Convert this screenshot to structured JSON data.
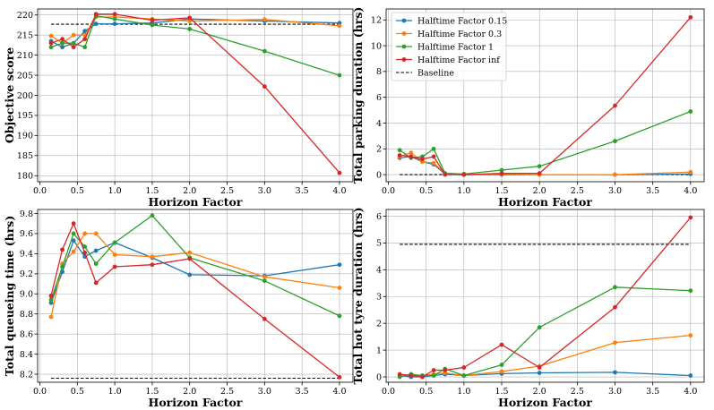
{
  "legend": {
    "entries": [
      "Halftime Factor 0.15",
      "Halftime Factor 0.3",
      "Halftime Factor 1",
      "Halftime Factor inf",
      "Baseline"
    ],
    "location": "top-left of top-right panel"
  },
  "colors": {
    "Halftime Factor 0.15": "#1f77b4",
    "Halftime Factor 0.3": "#ff7f0e",
    "Halftime Factor 1": "#2ca02c",
    "Halftime Factor inf": "#d62728",
    "Baseline": "#000000"
  },
  "chart_data": [
    {
      "type": "line",
      "panel": "top-left",
      "title": "",
      "xlabel": "Horizon Factor",
      "ylabel": "Objective score",
      "x": [
        0.15,
        0.3,
        0.45,
        0.6,
        0.75,
        1.0,
        1.5,
        2.0,
        3.0,
        4.0
      ],
      "xlim": [
        -0.03,
        4.18
      ],
      "ylim": [
        178.5,
        221.5
      ],
      "xticks": [
        0.0,
        0.5,
        1.0,
        1.5,
        2.0,
        2.5,
        3.0,
        3.5,
        4.0
      ],
      "xtick_labels": [
        "0.0",
        "0.5",
        "1.0",
        "1.5",
        "2.0",
        "2.5",
        "3.0",
        "3.5",
        "4.0"
      ],
      "yticks": [
        180,
        185,
        190,
        195,
        200,
        205,
        210,
        215,
        220
      ],
      "ytick_labels": [
        "180",
        "185",
        "190",
        "195",
        "200",
        "205",
        "210",
        "215",
        "220"
      ],
      "grid": true,
      "series": [
        {
          "name": "Halftime Factor 0.15",
          "values": [
            213.5,
            212.0,
            213.0,
            216.0,
            217.8,
            217.8,
            218.0,
            219.0,
            218.5,
            218.0
          ]
        },
        {
          "name": "Halftime Factor 0.3",
          "values": [
            214.8,
            213.0,
            215.0,
            215.0,
            219.5,
            219.5,
            219.0,
            218.5,
            218.9,
            217.3
          ]
        },
        {
          "name": "Halftime Factor 1",
          "values": [
            212.0,
            213.0,
            213.0,
            212.0,
            219.8,
            219.0,
            217.5,
            216.5,
            211.0,
            205.0
          ]
        },
        {
          "name": "Halftime Factor inf",
          "values": [
            213.0,
            214.0,
            212.0,
            214.0,
            220.2,
            220.2,
            218.7,
            219.3,
            202.2,
            180.7
          ]
        }
      ],
      "baseline": 217.7
    },
    {
      "type": "line",
      "panel": "top-right",
      "title": "",
      "xlabel": "Horizon Factor",
      "ylabel": "Total parking duration (hrs)",
      "x": [
        0.15,
        0.3,
        0.45,
        0.6,
        0.75,
        1.0,
        1.5,
        2.0,
        3.0,
        4.0
      ],
      "xlim": [
        -0.03,
        4.18
      ],
      "ylim": [
        -0.55,
        12.85
      ],
      "xticks": [
        0.0,
        0.5,
        1.0,
        1.5,
        2.0,
        2.5,
        3.0,
        3.5,
        4.0
      ],
      "xtick_labels": [
        "0.0",
        "0.5",
        "1.0",
        "1.5",
        "2.0",
        "2.5",
        "3.0",
        "3.5",
        "4.0"
      ],
      "yticks": [
        0,
        2,
        4,
        6,
        8,
        10,
        12
      ],
      "ytick_labels": [
        "0",
        "2",
        "4",
        "6",
        "8",
        "10",
        "12"
      ],
      "grid": true,
      "series": [
        {
          "name": "Halftime Factor 0.15",
          "values": [
            1.3,
            1.4,
            1.0,
            0.8,
            0.05,
            0.0,
            0.0,
            0.0,
            0.0,
            0.05
          ]
        },
        {
          "name": "Halftime Factor 0.3",
          "values": [
            1.4,
            1.7,
            1.0,
            0.9,
            0.1,
            0.0,
            0.05,
            0.0,
            0.0,
            0.2
          ]
        },
        {
          "name": "Halftime Factor 1",
          "values": [
            1.9,
            1.3,
            1.4,
            2.0,
            0.1,
            0.05,
            0.35,
            0.65,
            2.6,
            4.9
          ]
        },
        {
          "name": "Halftime Factor inf",
          "values": [
            1.5,
            1.4,
            1.2,
            1.4,
            0.0,
            0.0,
            0.1,
            0.1,
            5.35,
            12.2
          ]
        }
      ],
      "baseline": 0.0
    },
    {
      "type": "line",
      "panel": "bottom-left",
      "title": "",
      "xlabel": "Horizon Factor",
      "ylabel": "Total queueing time (hrs)",
      "x": [
        0.15,
        0.3,
        0.45,
        0.6,
        0.75,
        1.0,
        1.5,
        2.0,
        3.0,
        4.0
      ],
      "xlim": [
        -0.03,
        4.18
      ],
      "ylim": [
        8.12,
        9.84
      ],
      "xticks": [
        0.0,
        0.5,
        1.0,
        1.5,
        2.0,
        2.5,
        3.0,
        3.5,
        4.0
      ],
      "xtick_labels": [
        "0.0",
        "0.5",
        "1.0",
        "1.5",
        "2.0",
        "2.5",
        "3.0",
        "3.5",
        "4.0"
      ],
      "yticks": [
        8.2,
        8.4,
        8.6,
        8.8,
        9.0,
        9.2,
        9.4,
        9.6,
        9.8
      ],
      "ytick_labels": [
        "8.2",
        "8.4",
        "8.6",
        "8.8",
        "9.0",
        "9.2",
        "9.4",
        "9.6",
        "9.8"
      ],
      "grid": true,
      "series": [
        {
          "name": "Halftime Factor 0.15",
          "values": [
            8.91,
            9.22,
            9.53,
            9.37,
            9.43,
            9.51,
            9.36,
            9.19,
            9.18,
            9.29
          ]
        },
        {
          "name": "Halftime Factor 0.3",
          "values": [
            8.77,
            9.3,
            9.42,
            9.6,
            9.6,
            9.39,
            9.37,
            9.41,
            9.17,
            9.06
          ]
        },
        {
          "name": "Halftime Factor 1",
          "values": [
            8.94,
            9.27,
            9.6,
            9.47,
            9.3,
            9.51,
            9.78,
            9.36,
            9.13,
            8.78
          ]
        },
        {
          "name": "Halftime Factor inf",
          "values": [
            8.98,
            9.44,
            9.7,
            9.41,
            9.11,
            9.27,
            9.29,
            9.35,
            8.75,
            8.17
          ]
        }
      ],
      "baseline": 8.16
    },
    {
      "type": "line",
      "panel": "bottom-right",
      "title": "",
      "xlabel": "Horizon Factor",
      "ylabel": "Total hot tyre duration (hrs)",
      "x": [
        0.15,
        0.3,
        0.45,
        0.6,
        0.75,
        1.0,
        1.5,
        2.0,
        3.0,
        4.0
      ],
      "xlim": [
        -0.03,
        4.18
      ],
      "ylim": [
        -0.2,
        6.25
      ],
      "xticks": [
        0.0,
        0.5,
        1.0,
        1.5,
        2.0,
        2.5,
        3.0,
        3.5,
        4.0
      ],
      "xtick_labels": [
        "0.0",
        "0.5",
        "1.0",
        "1.5",
        "2.0",
        "2.5",
        "3.0",
        "3.5",
        "4.0"
      ],
      "yticks": [
        0,
        1,
        2,
        3,
        4,
        5,
        6
      ],
      "ytick_labels": [
        "0",
        "1",
        "2",
        "3",
        "4",
        "5",
        "6"
      ],
      "grid": true,
      "series": [
        {
          "name": "Halftime Factor 0.15",
          "values": [
            0.05,
            0.0,
            0.0,
            0.05,
            0.1,
            0.05,
            0.12,
            0.15,
            0.17,
            0.05
          ]
        },
        {
          "name": "Halftime Factor 0.3",
          "values": [
            0.05,
            0.05,
            0.05,
            0.1,
            0.15,
            0.05,
            0.2,
            0.4,
            1.28,
            1.55
          ]
        },
        {
          "name": "Halftime Factor 1",
          "values": [
            0.0,
            0.1,
            0.05,
            0.05,
            0.3,
            0.05,
            0.45,
            1.85,
            3.35,
            3.22
          ]
        },
        {
          "name": "Halftime Factor inf",
          "values": [
            0.1,
            0.05,
            0.0,
            0.25,
            0.25,
            0.35,
            1.2,
            0.35,
            2.6,
            5.95
          ]
        }
      ],
      "baseline": 4.95
    }
  ]
}
